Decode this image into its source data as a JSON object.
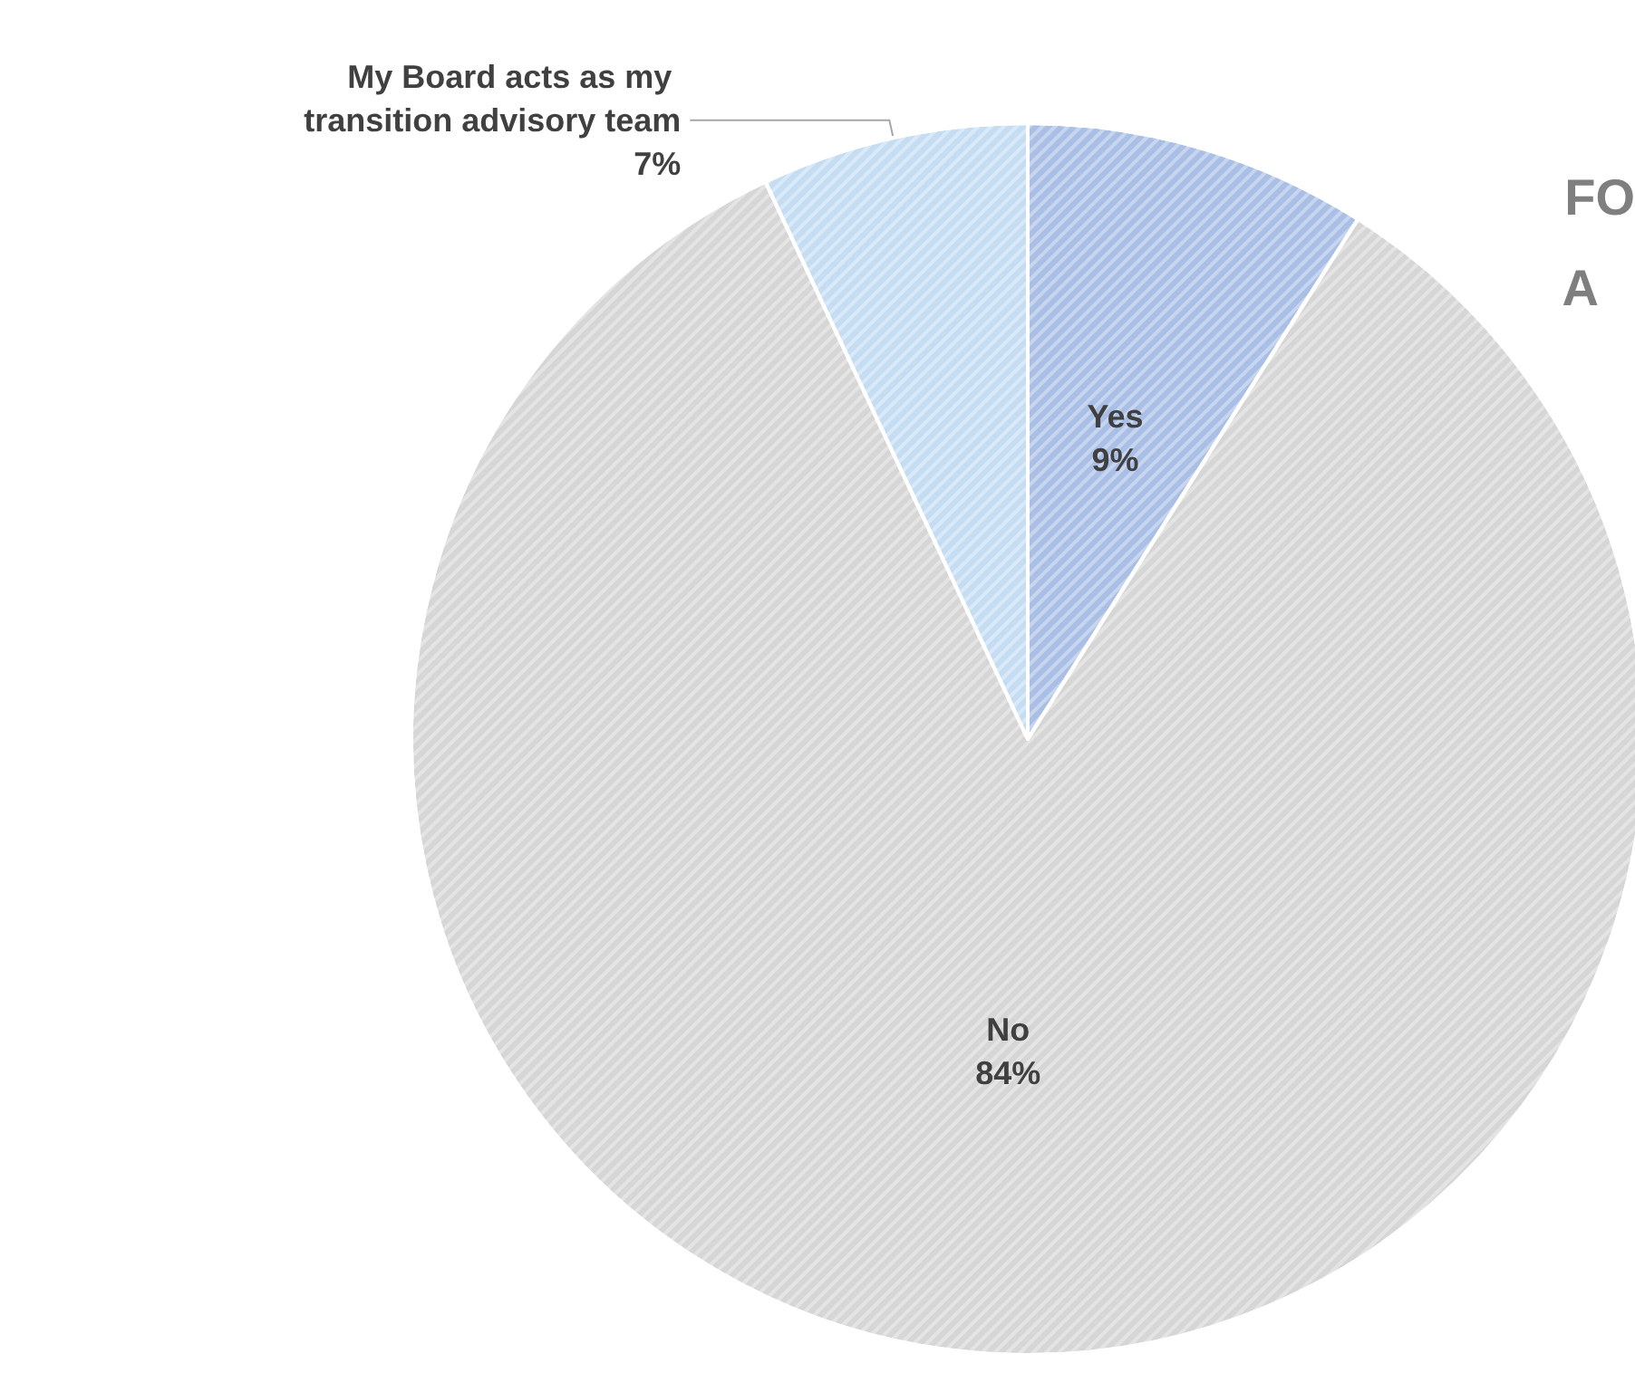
{
  "chart_data": {
    "type": "pie",
    "categories": [
      "Yes",
      "No",
      "My Board acts as my transition advisory team"
    ],
    "values": [
      9,
      84,
      7
    ],
    "colors": [
      "#a9bfe6",
      "#d6d6d6",
      "#c5ddf3"
    ],
    "value_labels": [
      "9%",
      "84%",
      "7%"
    ],
    "legend": false,
    "annotations": [
      "FO",
      "A"
    ]
  }
}
